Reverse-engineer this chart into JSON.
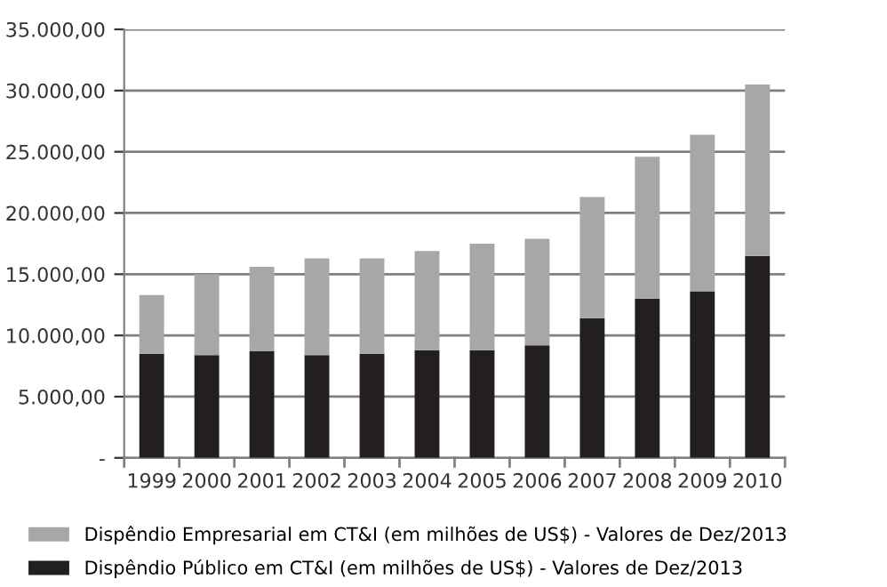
{
  "chart_data": {
    "type": "bar",
    "stacked": true,
    "categories": [
      "1999",
      "2000",
      "2001",
      "2002",
      "2003",
      "2004",
      "2005",
      "2006",
      "2007",
      "2008",
      "2009",
      "2010"
    ],
    "series": [
      {
        "name": "Dispêndio Público em CT&I (em milhões de US$) - Valores de Dez/2013",
        "color": "#231f20",
        "values": [
          8500,
          8400,
          8700,
          8400,
          8500,
          8800,
          8800,
          9200,
          11400,
          13000,
          13600,
          16500
        ]
      },
      {
        "name": "Dispêndio Empresarial em CT&I (em milhões de US$) - Valores de Dez/2013",
        "color": "#a7a7a9",
        "values": [
          4800,
          6600,
          6900,
          7900,
          7800,
          8100,
          8700,
          8700,
          9900,
          11600,
          12800,
          14000
        ]
      }
    ],
    "ylim": [
      0,
      35000
    ],
    "yticks": [
      {
        "value": 0,
        "label": "-"
      },
      {
        "value": 5000,
        "label": "5.000,00"
      },
      {
        "value": 10000,
        "label": "10.000,00"
      },
      {
        "value": 15000,
        "label": "15.000,00"
      },
      {
        "value": 20000,
        "label": "20.000,00"
      },
      {
        "value": 25000,
        "label": "25.000,00"
      },
      {
        "value": 30000,
        "label": "30.000,00"
      },
      {
        "value": 35000,
        "label": "35.000,00"
      }
    ],
    "grid": "y",
    "legend": "bottom"
  }
}
